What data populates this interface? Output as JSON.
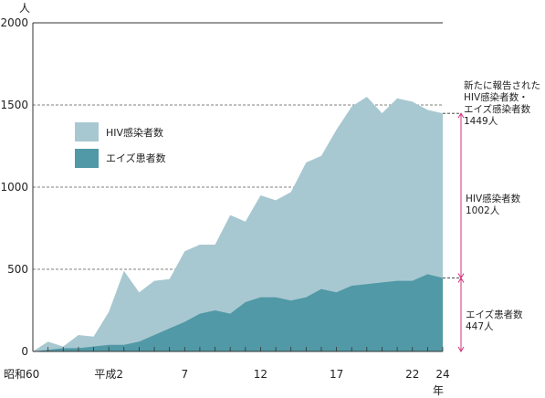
{
  "chart_data": {
    "type": "area",
    "y_unit": "人",
    "x_unit": "年",
    "ylim": [
      0,
      2000
    ],
    "y_ticks": [
      "0",
      "500",
      "1000",
      "1500",
      "2000"
    ],
    "x_ticks": [
      {
        "label": "昭和60",
        "year": 1985
      },
      {
        "label": "平成2",
        "year": 1990
      },
      {
        "label": "7",
        "year": 1995
      },
      {
        "label": "12",
        "year": 2000
      },
      {
        "label": "17",
        "year": 2005
      },
      {
        "label": "22",
        "year": 2010
      },
      {
        "label": "24",
        "year": 2012
      }
    ],
    "x": [
      1985,
      1986,
      1987,
      1988,
      1989,
      1990,
      1991,
      1992,
      1993,
      1994,
      1995,
      1996,
      1997,
      1998,
      1999,
      2000,
      2001,
      2002,
      2003,
      2004,
      2005,
      2006,
      2007,
      2008,
      2009,
      2010,
      2011,
      2012
    ],
    "grid": "dashed horizontal lines at 500, 1000, 1500",
    "series": [
      {
        "name": "HIV感染者数",
        "color": "#a8c8d1",
        "values": [
          0,
          60,
          30,
          100,
          90,
          240,
          490,
          360,
          430,
          440,
          610,
          650,
          650,
          830,
          790,
          950,
          920,
          970,
          1150,
          1190,
          1350,
          1490,
          1550,
          1450,
          1540,
          1520,
          1470,
          1449
        ]
      },
      {
        "name": "エイズ患者数",
        "color": "#5199a6",
        "values": [
          0,
          10,
          20,
          20,
          30,
          40,
          40,
          60,
          100,
          140,
          180,
          230,
          250,
          230,
          300,
          330,
          330,
          310,
          330,
          380,
          360,
          400,
          410,
          420,
          430,
          430,
          470,
          447
        ]
      }
    ],
    "annotations": {
      "total": [
        "新たに報告された",
        "HIV感染者数・",
        "エイズ感染者数",
        "1449人"
      ],
      "hiv": [
        "HIV感染者数",
        "1002人"
      ],
      "aids": [
        "エイズ患者数",
        "447人"
      ]
    },
    "annotation_color": "#d4307a"
  }
}
